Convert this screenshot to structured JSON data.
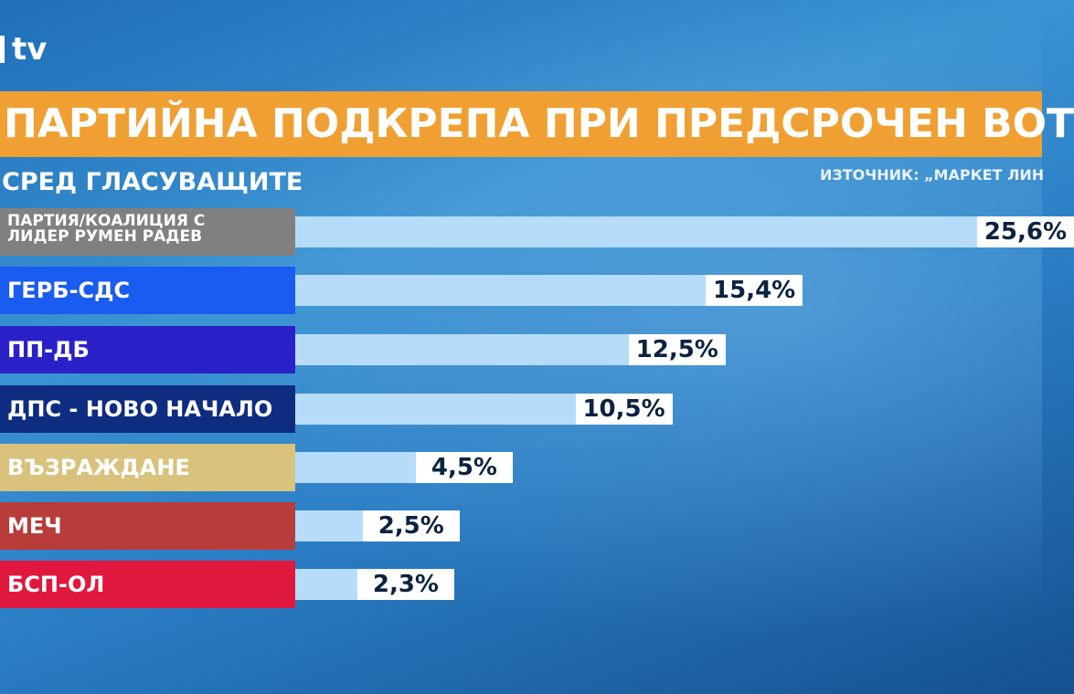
{
  "logo": {
    "text": "tv"
  },
  "header": {
    "title": "ПАРТИЙНА ПОДКРЕПА ПРИ ПРЕДСРОЧЕН ВОТ",
    "subtitle": "СРЕД ГЛАСУВАЩИТЕ",
    "source": "ИЗТОЧНИК: „МАРКЕТ ЛИН"
  },
  "colors": {
    "banner": "#f0a032",
    "bar_track": "#b7dcfa"
  },
  "chart_data": {
    "type": "bar",
    "orientation": "horizontal",
    "title": "ПАРТИЙНА ПОДКРЕПА ПРИ ПРЕДСРОЧЕН ВОТ",
    "subtitle": "СРЕД ГЛАСУВАЩИТЕ",
    "categories": [
      "ПАРТИЯ/КОАЛИЦИЯ С ЛИДЕР РУМЕН РАДЕВ",
      "ГЕРБ-СДС",
      "ПП-ДБ",
      "ДПС - НОВО НАЧАЛО",
      "ВЪЗРАЖДАНЕ",
      "МЕЧ",
      "БСП-ОЛ"
    ],
    "values": [
      25.6,
      15.4,
      12.5,
      10.5,
      4.5,
      2.5,
      2.3
    ],
    "labels": [
      "25,6%",
      "15,4%",
      "12,5%",
      "10,5%",
      "4,5%",
      "2,5%",
      "2,3%"
    ],
    "category_colors": [
      "#808080",
      "#1a5cf0",
      "#2a22c8",
      "#0e2c80",
      "#d8c27c",
      "#b83c3a",
      "#e0183e"
    ],
    "unit": "%",
    "grid": false
  }
}
